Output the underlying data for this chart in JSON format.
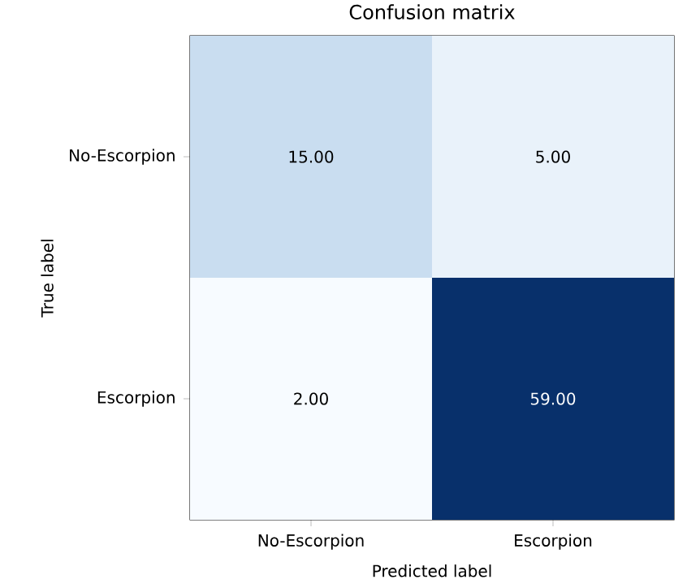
{
  "chart_data": {
    "type": "heatmap",
    "title": "Confusion matrix",
    "xlabel": "Predicted label",
    "ylabel": "True label",
    "categories": [
      "No-Escorpion",
      "Escorpion"
    ],
    "y_categories": [
      "No-Escorpion",
      "Escorpion"
    ],
    "cells": [
      [
        15,
        5
      ],
      [
        2,
        59
      ]
    ],
    "cell_labels": [
      [
        "15.00",
        "5.00"
      ],
      [
        "2.00",
        "59.00"
      ]
    ],
    "colors": [
      "#c9ddf0",
      "#e9f2fa",
      "#f7fbff",
      "#08306b"
    ]
  }
}
